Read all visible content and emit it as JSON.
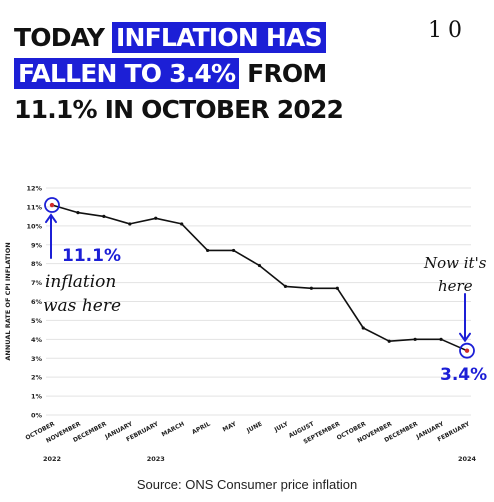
{
  "page_number": "10",
  "headline": {
    "line1_plain": "TODAY ",
    "line1_highlight": "INFLATION HAS",
    "line2_highlight": "FALLEN TO 3.4%",
    "line2_plain": " FROM",
    "line3_plain": "11.1% IN OCTOBER 2022"
  },
  "colors": {
    "highlight": "#1c1fd6",
    "annotation": "#1c1fd6",
    "line": "#111111",
    "marker": "#d22a2a"
  },
  "annotations": {
    "start_value": "11.1%",
    "start_note_line1": "inflation",
    "start_note_line2": "was here",
    "end_note_line1": "Now it's",
    "end_note_line2": "here",
    "end_value": "3.4%"
  },
  "chart_data": {
    "type": "line",
    "ylabel": "ANNUAL RATE OF CPI INFLATION",
    "ylim": [
      0,
      12
    ],
    "yticks": [
      "0%",
      "1%",
      "2%",
      "3%",
      "4%",
      "5%",
      "6%",
      "7%",
      "8%",
      "9%",
      "10%",
      "11%",
      "12%"
    ],
    "grid": true,
    "categories": [
      "OCTOBER",
      "NOVEMBER",
      "DECEMBER",
      "JANUARY",
      "FEBRUARY",
      "MARCH",
      "APRIL",
      "MAY",
      "JUNE",
      "JULY",
      "AUGUST",
      "SEPTEMBER",
      "OCTOBER",
      "NOVEMBER",
      "DECEMBER",
      "JANUARY",
      "FEBRUARY"
    ],
    "year_labels": [
      {
        "label": "2022",
        "index": 0
      },
      {
        "label": "2023",
        "index": 4
      },
      {
        "label": "2024",
        "index": 16
      }
    ],
    "values": [
      11.1,
      10.7,
      10.5,
      10.1,
      10.4,
      10.1,
      8.7,
      8.7,
      7.9,
      6.8,
      6.7,
      6.7,
      4.6,
      3.9,
      4.0,
      4.0,
      3.4
    ]
  },
  "source": "Source: ONS Consumer price inflation"
}
